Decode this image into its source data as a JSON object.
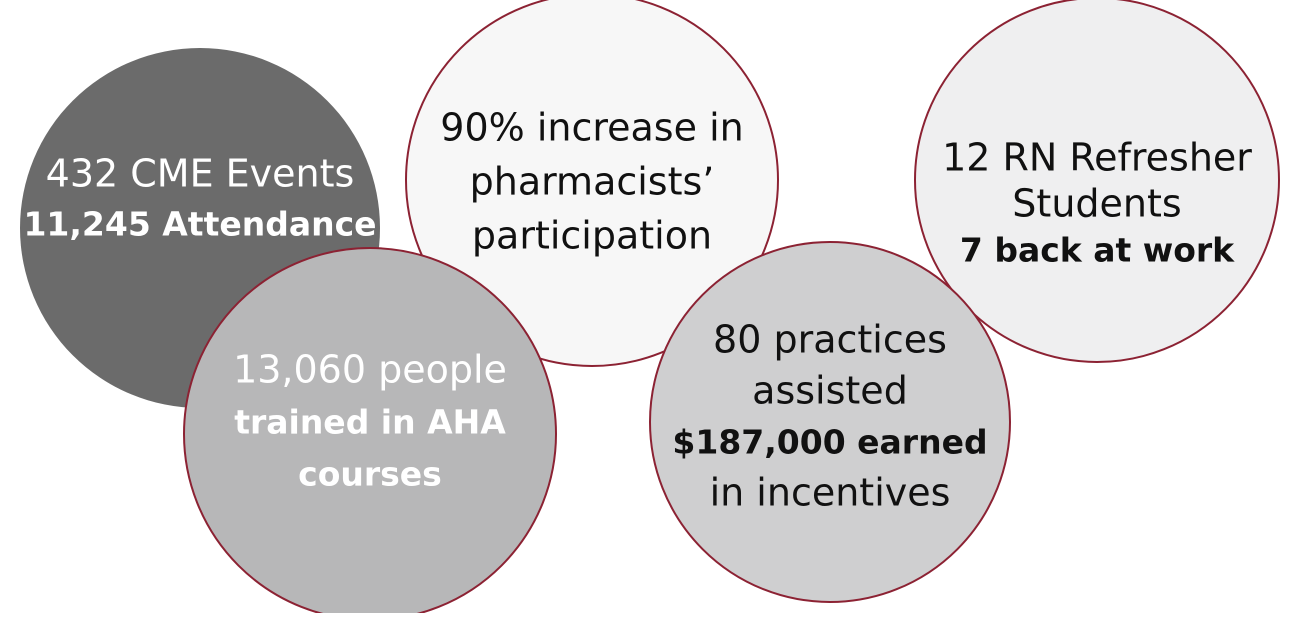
{
  "circles": [
    {
      "fill": "#6b6b6b",
      "stroke": "none",
      "text_color": "#ffffff",
      "lines": [
        {
          "text": "432 CME Events",
          "bold": false
        },
        {
          "text": "11,245 Attendance",
          "bold": true
        }
      ]
    },
    {
      "fill": "#f7f7f7",
      "stroke": "#8c2233",
      "text_color": "#111111",
      "lines": [
        {
          "text": "90% increase in",
          "bold": false
        },
        {
          "text": "pharmacists’",
          "bold": false
        },
        {
          "text": "participation",
          "bold": false
        }
      ]
    },
    {
      "fill": "#b7b7b8",
      "stroke": "#8c2233",
      "text_color": "#ffffff",
      "lines": [
        {
          "text": "13,060 people",
          "bold": false
        },
        {
          "text": "trained in AHA",
          "bold": true
        },
        {
          "text": "courses",
          "bold": true
        }
      ]
    },
    {
      "fill": "#efeff0",
      "stroke": "#8c2233",
      "text_color": "#111111",
      "lines": [
        {
          "text": "12 RN Refresher",
          "bold": false
        },
        {
          "text": "Students",
          "bold": false
        },
        {
          "text": "7 back at work",
          "bold": true
        }
      ]
    },
    {
      "fill": "#cfcfd0",
      "stroke": "#8c2233",
      "text_color": "#111111",
      "lines": [
        {
          "text": "80 practices",
          "bold": false
        },
        {
          "text": "assisted",
          "bold": false
        },
        {
          "text": "$187,000 earned",
          "bold": true
        },
        {
          "text": "in incentives",
          "bold": false
        }
      ]
    }
  ]
}
